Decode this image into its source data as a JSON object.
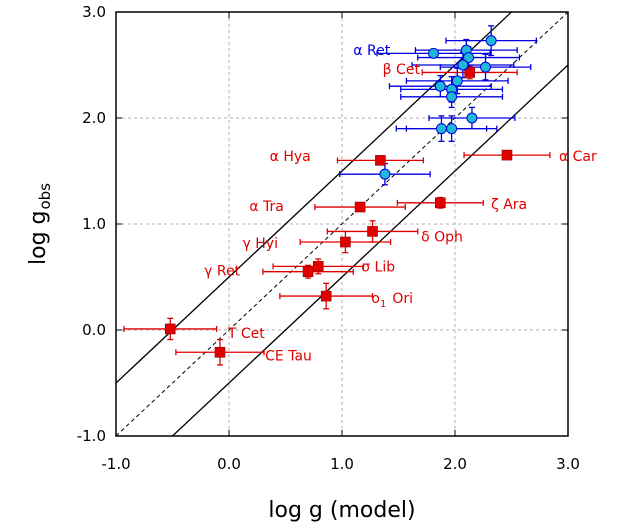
{
  "chart_data": {
    "type": "scatter",
    "title": "",
    "xlabel": "log g (model)",
    "ylabel_main": "log g",
    "ylabel_sub": "obs",
    "xlim": [
      -1.0,
      3.0
    ],
    "ylim": [
      -1.0,
      3.0
    ],
    "xticks": [
      "-1.0",
      "0.0",
      "1.0",
      "2.0",
      "3.0"
    ],
    "yticks": [
      "-1.0",
      "0.0",
      "1.0",
      "2.0",
      "3.0"
    ],
    "xtick_values": [
      -1.0,
      0.0,
      1.0,
      2.0,
      3.0
    ],
    "ytick_values": [
      -1.0,
      0.0,
      1.0,
      2.0,
      3.0
    ],
    "grid": true,
    "reference_lines": [
      {
        "style": "dashed",
        "intercept": 0.0,
        "slope": 1
      },
      {
        "style": "solid",
        "intercept": 0.5,
        "slope": 1
      },
      {
        "style": "solid",
        "intercept": -0.5,
        "slope": 1
      }
    ],
    "colors": {
      "red_series": "#e00000",
      "blue_series": "#0000e0",
      "circle_fill": "#20b8d8",
      "grid": "#b0b0b0"
    },
    "series": [
      {
        "marker": "square",
        "color": "#e00000",
        "points": [
          {
            "x": 2.13,
            "y": 2.43,
            "xerr": 0.42,
            "yerr": 0.06
          },
          {
            "x": 1.34,
            "y": 1.6,
            "xerr": 0.38,
            "yerr": 0.03
          },
          {
            "x": 2.46,
            "y": 1.65,
            "xerr": 0.38,
            "yerr": 0.04
          },
          {
            "x": 1.87,
            "y": 1.2,
            "xerr": 0.38,
            "yerr": 0.05
          },
          {
            "x": 1.16,
            "y": 1.16,
            "xerr": 0.4,
            "yerr": 0.04
          },
          {
            "x": 1.27,
            "y": 0.93,
            "xerr": 0.4,
            "yerr": 0.1
          },
          {
            "x": 1.03,
            "y": 0.83,
            "xerr": 0.4,
            "yerr": 0.1
          },
          {
            "x": 0.79,
            "y": 0.6,
            "xerr": 0.4,
            "yerr": 0.07
          },
          {
            "x": 0.7,
            "y": 0.55,
            "xerr": 0.4,
            "yerr": 0.06
          },
          {
            "x": 0.86,
            "y": 0.32,
            "xerr": 0.41,
            "yerr": 0.12
          },
          {
            "x": -0.52,
            "y": 0.01,
            "xerr": 0.41,
            "yerr": 0.1
          },
          {
            "x": -0.08,
            "y": -0.21,
            "xerr": 0.39,
            "yerr": 0.12
          }
        ]
      },
      {
        "marker": "circle",
        "color": "#0000e0",
        "points": [
          {
            "x": 1.81,
            "y": 2.61,
            "xerr": 0.5,
            "yerr": 0.03
          },
          {
            "x": 2.1,
            "y": 2.64,
            "xerr": 0.45,
            "yerr": 0.1
          },
          {
            "x": 2.32,
            "y": 2.73,
            "xerr": 0.4,
            "yerr": 0.14
          },
          {
            "x": 2.12,
            "y": 2.57,
            "xerr": 0.45,
            "yerr": 0.1
          },
          {
            "x": 2.07,
            "y": 2.5,
            "xerr": 0.45,
            "yerr": 0.12
          },
          {
            "x": 2.27,
            "y": 2.48,
            "xerr": 0.4,
            "yerr": 0.12
          },
          {
            "x": 2.02,
            "y": 2.35,
            "xerr": 0.45,
            "yerr": 0.12
          },
          {
            "x": 1.87,
            "y": 2.3,
            "xerr": 0.45,
            "yerr": 0.1
          },
          {
            "x": 1.97,
            "y": 2.27,
            "xerr": 0.45,
            "yerr": 0.12
          },
          {
            "x": 1.97,
            "y": 2.2,
            "xerr": 0.45,
            "yerr": 0.1
          },
          {
            "x": 2.15,
            "y": 2.0,
            "xerr": 0.38,
            "yerr": 0.1
          },
          {
            "x": 1.88,
            "y": 1.9,
            "xerr": 0.4,
            "yerr": 0.12
          },
          {
            "x": 1.97,
            "y": 1.9,
            "xerr": 0.4,
            "yerr": 0.12
          },
          {
            "x": 1.38,
            "y": 1.47,
            "xerr": 0.4,
            "yerr": 0.1
          }
        ]
      }
    ],
    "annotations": [
      {
        "text": "α Ret",
        "x": 1.1,
        "y": 2.64,
        "color": "#0000e0"
      },
      {
        "text": "β Cet",
        "x": 1.36,
        "y": 2.46,
        "color": "#e00000"
      },
      {
        "text": "α Hya",
        "x": 0.36,
        "y": 1.64,
        "color": "#e00000"
      },
      {
        "text": "α Car",
        "x": 2.92,
        "y": 1.64,
        "color": "#e00000"
      },
      {
        "text": "α Tra",
        "x": 0.18,
        "y": 1.17,
        "color": "#e00000"
      },
      {
        "text": "ζ Ara",
        "x": 2.32,
        "y": 1.19,
        "color": "#e00000"
      },
      {
        "text": "δ Oph",
        "x": 1.7,
        "y": 0.88,
        "color": "#e00000"
      },
      {
        "text": "γ Hyi",
        "x": 0.12,
        "y": 0.82,
        "color": "#e00000"
      },
      {
        "text": "σ Lib",
        "x": 1.17,
        "y": 0.6,
        "color": "#e00000"
      },
      {
        "text": "γ Ret",
        "x": -0.22,
        "y": 0.56,
        "color": "#e00000"
      },
      {
        "text": "o",
        "sub": "1",
        "text2": "Ori",
        "x": 1.26,
        "y": 0.3,
        "color": "#e00000"
      },
      {
        "text": "T Cet",
        "x": -0.01,
        "y": -0.03,
        "color": "#e00000"
      },
      {
        "text": "CE Tau",
        "x": 0.32,
        "y": -0.24,
        "color": "#e00000"
      }
    ]
  }
}
